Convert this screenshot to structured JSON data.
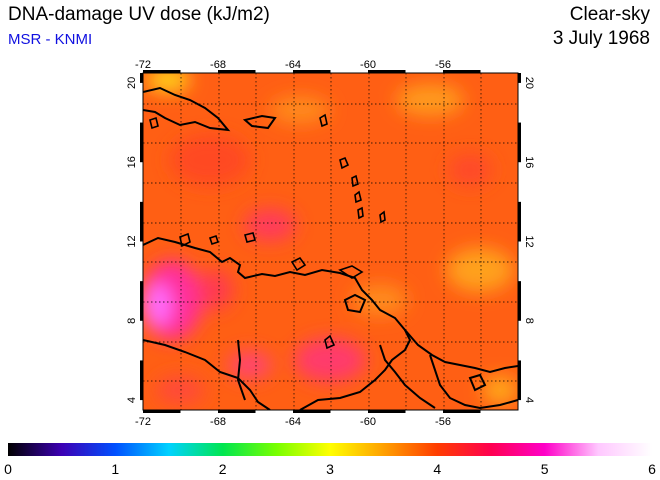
{
  "header": {
    "title": "DNA-damage UV dose (kJ/m2)",
    "subtitle": "MSR - KNMI",
    "condition": "Clear-sky",
    "date": "3 July 1968"
  },
  "map": {
    "lon_ticks": [
      -72,
      -68,
      -64,
      -60,
      -56
    ],
    "lat_ticks": [
      4,
      8,
      12,
      16,
      20
    ],
    "lon_range": [
      -72,
      -52
    ],
    "lat_range": [
      3.5,
      20.5
    ],
    "grid": "dotted",
    "base_color": "#ff5f14"
  },
  "colorbar": {
    "ticks": [
      "0",
      "1",
      "2",
      "3",
      "4",
      "5",
      "6"
    ],
    "range": [
      0,
      6
    ],
    "colors": [
      "#000000",
      "#3c00b4",
      "#0050ff",
      "#00d2ff",
      "#00e650",
      "#78ff00",
      "#ffff00",
      "#ffa000",
      "#ff3c00",
      "#ff0050",
      "#ff00c8",
      "#ffc8ff",
      "#ffffff"
    ]
  }
}
